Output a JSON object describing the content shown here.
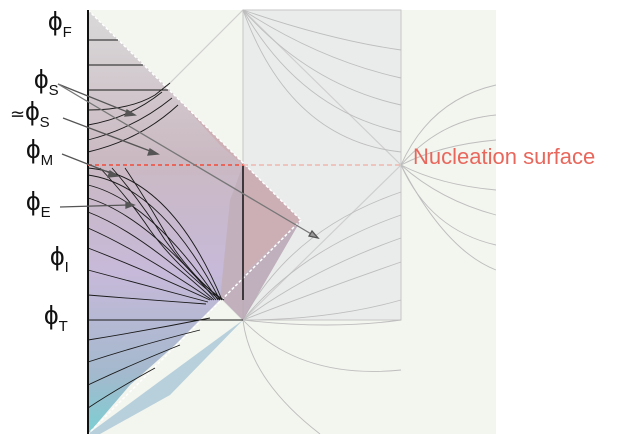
{
  "labels": {
    "phi_F": {
      "base": "ϕ",
      "sub": "F"
    },
    "phi_S": {
      "base": "ϕ",
      "sub": "S"
    },
    "approx_phi_S": {
      "prefix": "≃",
      "base": "ϕ",
      "sub": "S"
    },
    "phi_M": {
      "base": "ϕ",
      "sub": "M"
    },
    "phi_E": {
      "base": "ϕ",
      "sub": "E"
    },
    "phi_I": {
      "base": "ϕ",
      "sub": "I"
    },
    "phi_T": {
      "base": "ϕ",
      "sub": "T"
    }
  },
  "nucleation_label": "Nucleation surface",
  "colors": {
    "nucleation": "#e8675c",
    "grid_lines": "#b8b8b8",
    "region_pink": "#c9a5ac",
    "region_gray": "#c8c8c8",
    "region_purple": "#c4b8d8",
    "region_blue": "#9fb8cc",
    "region_cyan": "#7fd0d4",
    "background_panel": "#eef1ea"
  }
}
